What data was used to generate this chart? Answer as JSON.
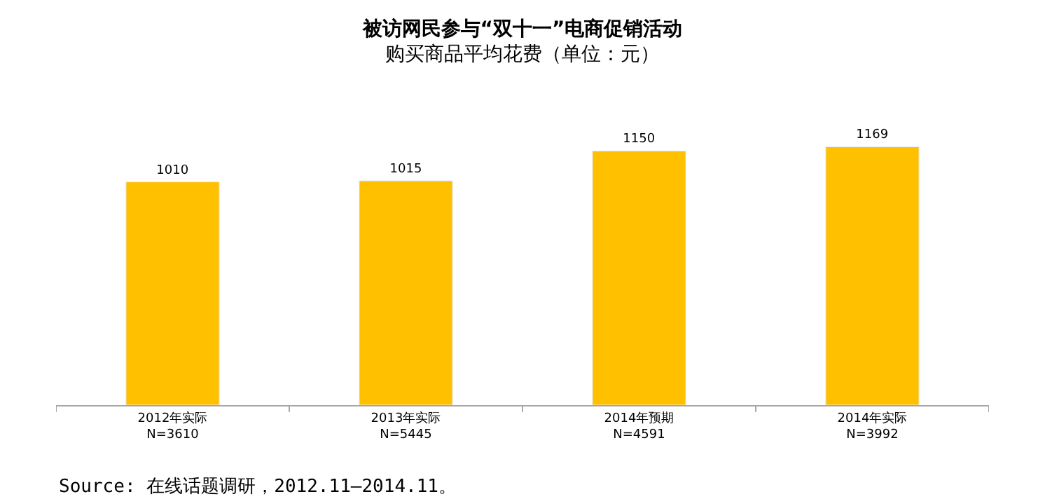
{
  "chart_data": {
    "type": "bar",
    "title": "被访网民参与“双十一”电商促销活动",
    "subtitle": "购买商品平均花费（单位：元）",
    "categories": [
      "2012年实际\nN=3610",
      "2013年实际\nN=5445",
      "2014年预期\nN=4591",
      "2014年实际\nN=3992"
    ],
    "values": [
      1010,
      1015,
      1150,
      1169
    ],
    "color": "#ffc000",
    "data_labels": true,
    "tick_labels": "x",
    "legend": false,
    "annotations": [
      "Source: 在线话题调研，2012.11—2014.11。"
    ]
  }
}
